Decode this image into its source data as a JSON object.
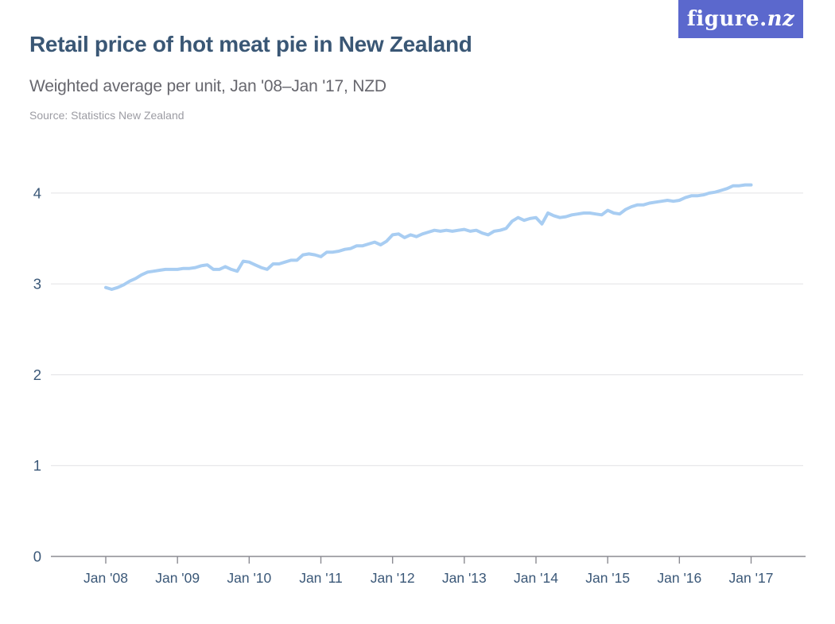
{
  "logo": {
    "prefix": "figure.",
    "suffix": "nz"
  },
  "header": {
    "title": "Retail price of hot meat pie in New Zealand",
    "subtitle": "Weighted average per unit, Jan '08–Jan '17, NZD",
    "source": "Source: Statistics New Zealand"
  },
  "chart_data": {
    "type": "line",
    "title": "Retail price of hot meat pie in New Zealand",
    "series_name": "Weighted average retail price per unit",
    "currency": "NZD",
    "x_unit": "month",
    "x_start": "2008-01",
    "x_end": "2017-01",
    "x_interval": "monthly",
    "x_tick_labels": [
      "Jan '08",
      "Jan '09",
      "Jan '10",
      "Jan '11",
      "Jan '12",
      "Jan '13",
      "Jan '14",
      "Jan '15",
      "Jan '16",
      "Jan '17"
    ],
    "y_ticks": [
      0,
      1,
      2,
      3,
      4
    ],
    "ylim": [
      0,
      4.55
    ],
    "grid": "horizontal",
    "legend": "none",
    "line_color": "#a8cdf2",
    "gridline_color": "#e2e2e5",
    "axis_color": "#8b8b92",
    "tick_label_color": "#3b5878",
    "values": [
      2.96,
      2.94,
      2.96,
      2.99,
      3.03,
      3.06,
      3.1,
      3.13,
      3.14,
      3.15,
      3.16,
      3.16,
      3.16,
      3.17,
      3.17,
      3.18,
      3.2,
      3.21,
      3.16,
      3.16,
      3.19,
      3.16,
      3.14,
      3.25,
      3.24,
      3.21,
      3.18,
      3.16,
      3.22,
      3.22,
      3.24,
      3.26,
      3.26,
      3.32,
      3.33,
      3.32,
      3.3,
      3.35,
      3.35,
      3.36,
      3.38,
      3.39,
      3.42,
      3.42,
      3.44,
      3.46,
      3.43,
      3.47,
      3.54,
      3.55,
      3.51,
      3.54,
      3.52,
      3.55,
      3.57,
      3.59,
      3.58,
      3.59,
      3.58,
      3.59,
      3.6,
      3.58,
      3.59,
      3.56,
      3.54,
      3.58,
      3.59,
      3.61,
      3.69,
      3.73,
      3.7,
      3.72,
      3.73,
      3.66,
      3.78,
      3.75,
      3.73,
      3.74,
      3.76,
      3.77,
      3.78,
      3.78,
      3.77,
      3.76,
      3.81,
      3.78,
      3.77,
      3.82,
      3.85,
      3.87,
      3.87,
      3.89,
      3.9,
      3.91,
      3.92,
      3.91,
      3.92,
      3.95,
      3.97,
      3.97,
      3.98,
      4.0,
      4.01,
      4.03,
      4.05,
      4.08,
      4.08,
      4.09,
      4.09
    ]
  }
}
